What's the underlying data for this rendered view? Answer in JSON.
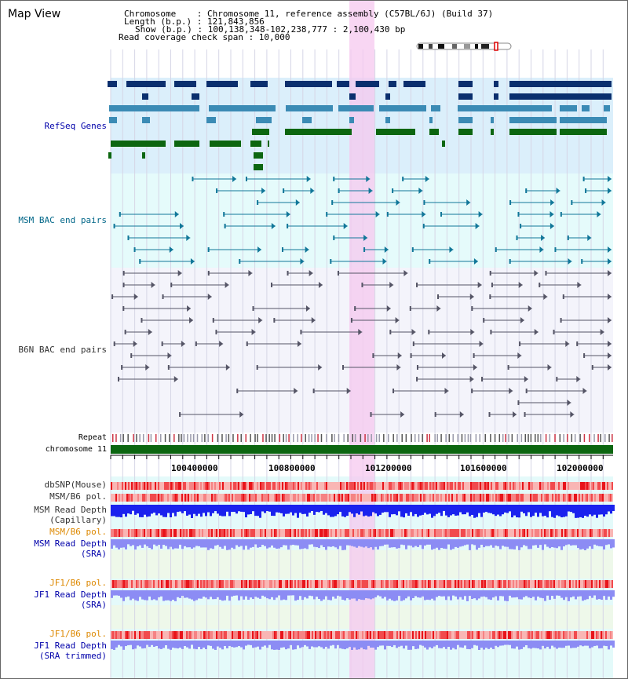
{
  "page_title": "Map View",
  "header": {
    "chromosome_line": "Chromosome    : Chromosome 11, reference assembly (C57BL/6J) (Build 37)",
    "length_line": "Length (b.p.) : 121,843,856",
    "show_line": "Show (b.p.) : 100,138,348-102,238,777 : 2,100,430 bp",
    "coverage_line": "Read coverage check span : 10,000"
  },
  "tracks": {
    "refseq": "RefSeq Genes",
    "msm_bac": "MSM BAC end pairs",
    "b6n_bac": "B6N BAC end pairs",
    "repeat": "Repeat",
    "chromosome": "chromosome 11",
    "dbsnp": "dbSNP(Mouse)",
    "msm_b6_pol_1": "MSM/B6 pol.",
    "msm_read_depth_cap_1": "MSM Read Depth",
    "msm_read_depth_cap_2": "(Capillary)",
    "msm_b6_pol_2": "MSM/B6 pol.",
    "msm_read_depth_sra_1": "MSM Read Depth",
    "msm_read_depth_sra_2": "(SRA)",
    "jf1_b6_pol_1": "JF1/B6 pol.",
    "jf1_read_depth_sra_1": "JF1 Read Depth",
    "jf1_read_depth_sra_2": "(SRA)",
    "jf1_b6_pol_2": "JF1/B6 pol.",
    "jf1_read_depth_trim_1": "JF1 Read Depth",
    "jf1_read_depth_trim_2": "(SRA trimmed)"
  },
  "ruler_ticks": [
    "100400000",
    "100800000",
    "101200000",
    "101600000",
    "102000000"
  ],
  "colors": {
    "label_black": "#333333",
    "label_blue": "#0000aa",
    "label_teal": "#006688",
    "label_orange": "#dd8800",
    "refseq_dark": "#0a2f6e",
    "refseq_mid": "#3b8bb5",
    "refseq_green": "#0c6610",
    "highlight": "#f5c8ef"
  }
}
